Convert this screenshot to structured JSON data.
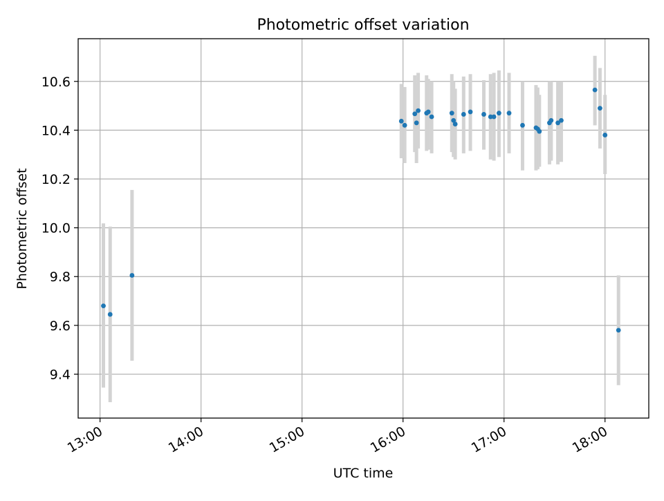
{
  "colors": {
    "marker": "#1f77b4",
    "errorbar": "#d3d3d3",
    "grid": "#b0b0b0",
    "axes": "#000000",
    "background": "#ffffff"
  },
  "chart_data": {
    "type": "scatter",
    "title": "Photometric offset variation",
    "xlabel": "UTC time",
    "ylabel": "Photometric offset",
    "grid": true,
    "legend": "none",
    "xlim": [
      "12:47",
      "18:26"
    ],
    "ylim": [
      9.22,
      10.775
    ],
    "x_ticks": [
      "13:00",
      "14:00",
      "15:00",
      "16:00",
      "17:00",
      "18:00"
    ],
    "y_ticks": [
      "9.4",
      "9.6",
      "9.8",
      "10.0",
      "10.2",
      "10.4",
      "10.6"
    ],
    "series": [
      {
        "marker": "dot",
        "error_bars": "vertical",
        "points": [
          {
            "x": "13:02",
            "y": 9.68,
            "ylow": 9.345,
            "yhigh": 10.018
          },
          {
            "x": "13:06",
            "y": 9.645,
            "ylow": 9.285,
            "yhigh": 10.005
          },
          {
            "x": "13:19",
            "y": 9.805,
            "ylow": 9.455,
            "yhigh": 10.155
          },
          {
            "x": "15:59",
            "y": 10.437,
            "ylow": 10.285,
            "yhigh": 10.59
          },
          {
            "x": "16:01",
            "y": 10.42,
            "ylow": 10.265,
            "yhigh": 10.577
          },
          {
            "x": "16:07",
            "y": 10.467,
            "ylow": 10.31,
            "yhigh": 10.625
          },
          {
            "x": "16:08",
            "y": 10.43,
            "ylow": 10.265,
            "yhigh": 10.59
          },
          {
            "x": "16:09",
            "y": 10.48,
            "ylow": 10.325,
            "yhigh": 10.635
          },
          {
            "x": "16:14",
            "y": 10.47,
            "ylow": 10.315,
            "yhigh": 10.625
          },
          {
            "x": "16:15",
            "y": 10.475,
            "ylow": 10.32,
            "yhigh": 10.61
          },
          {
            "x": "16:17",
            "y": 10.455,
            "ylow": 10.305,
            "yhigh": 10.6
          },
          {
            "x": "16:29",
            "y": 10.47,
            "ylow": 10.31,
            "yhigh": 10.63
          },
          {
            "x": "16:30",
            "y": 10.44,
            "ylow": 10.29,
            "yhigh": 10.6
          },
          {
            "x": "16:31",
            "y": 10.425,
            "ylow": 10.28,
            "yhigh": 10.57
          },
          {
            "x": "16:36",
            "y": 10.465,
            "ylow": 10.305,
            "yhigh": 10.62
          },
          {
            "x": "16:40",
            "y": 10.475,
            "ylow": 10.315,
            "yhigh": 10.63
          },
          {
            "x": "16:48",
            "y": 10.465,
            "ylow": 10.32,
            "yhigh": 10.605
          },
          {
            "x": "16:52",
            "y": 10.455,
            "ylow": 10.28,
            "yhigh": 10.63
          },
          {
            "x": "16:54",
            "y": 10.455,
            "ylow": 10.275,
            "yhigh": 10.635
          },
          {
            "x": "16:57",
            "y": 10.47,
            "ylow": 10.29,
            "yhigh": 10.645
          },
          {
            "x": "17:03",
            "y": 10.47,
            "ylow": 10.305,
            "yhigh": 10.635
          },
          {
            "x": "17:11",
            "y": 10.42,
            "ylow": 10.235,
            "yhigh": 10.6
          },
          {
            "x": "17:19",
            "y": 10.41,
            "ylow": 10.235,
            "yhigh": 10.585
          },
          {
            "x": "17:20",
            "y": 10.405,
            "ylow": 10.24,
            "yhigh": 10.575
          },
          {
            "x": "17:21",
            "y": 10.395,
            "ylow": 10.25,
            "yhigh": 10.545
          },
          {
            "x": "17:27",
            "y": 10.43,
            "ylow": 10.26,
            "yhigh": 10.6
          },
          {
            "x": "17:28",
            "y": 10.44,
            "ylow": 10.275,
            "yhigh": 10.6
          },
          {
            "x": "17:32",
            "y": 10.43,
            "ylow": 10.26,
            "yhigh": 10.6
          },
          {
            "x": "17:34",
            "y": 10.44,
            "ylow": 10.27,
            "yhigh": 10.6
          },
          {
            "x": "17:54",
            "y": 10.565,
            "ylow": 10.42,
            "yhigh": 10.705
          },
          {
            "x": "17:57",
            "y": 10.49,
            "ylow": 10.325,
            "yhigh": 10.655
          },
          {
            "x": "18:00",
            "y": 10.38,
            "ylow": 10.22,
            "yhigh": 10.545
          },
          {
            "x": "18:08",
            "y": 9.58,
            "ylow": 9.355,
            "yhigh": 9.805
          }
        ]
      }
    ]
  }
}
